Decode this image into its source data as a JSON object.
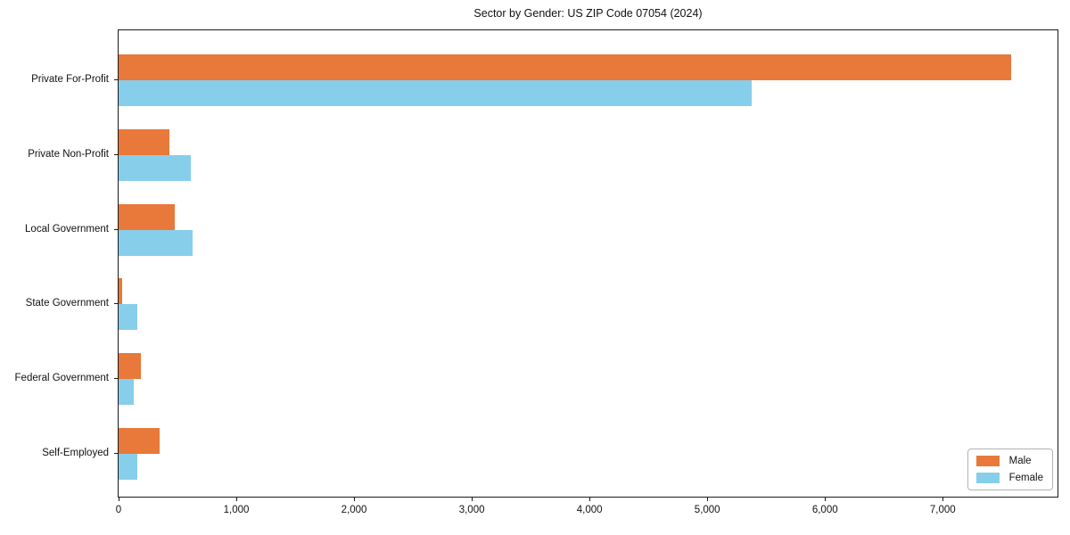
{
  "chart_data": {
    "type": "bar",
    "orientation": "horizontal",
    "title": "Sector by Gender: US ZIP Code 07054 (2024)",
    "categories": [
      "Private For-Profit",
      "Private Non-Profit",
      "Local Government",
      "State Government",
      "Federal Government",
      "Self-Employed"
    ],
    "series": [
      {
        "name": "Male",
        "color": "#e8793a",
        "values": [
          7580,
          430,
          480,
          30,
          190,
          350
        ]
      },
      {
        "name": "Female",
        "color": "#87ceeb",
        "values": [
          5380,
          610,
          630,
          160,
          130,
          160
        ]
      }
    ],
    "xlabel": "",
    "ylabel": "",
    "xlim": [
      0,
      7975
    ],
    "x_ticks": [
      0,
      1000,
      2000,
      3000,
      4000,
      5000,
      6000,
      7000
    ],
    "x_tick_labels": [
      "0",
      "1,000",
      "2,000",
      "3,000",
      "4,000",
      "5,000",
      "6,000",
      "7,000"
    ],
    "grid": false,
    "legend_position": "lower right",
    "plot_border_color": "#1a1a1a",
    "background_color": "#ffffff"
  }
}
